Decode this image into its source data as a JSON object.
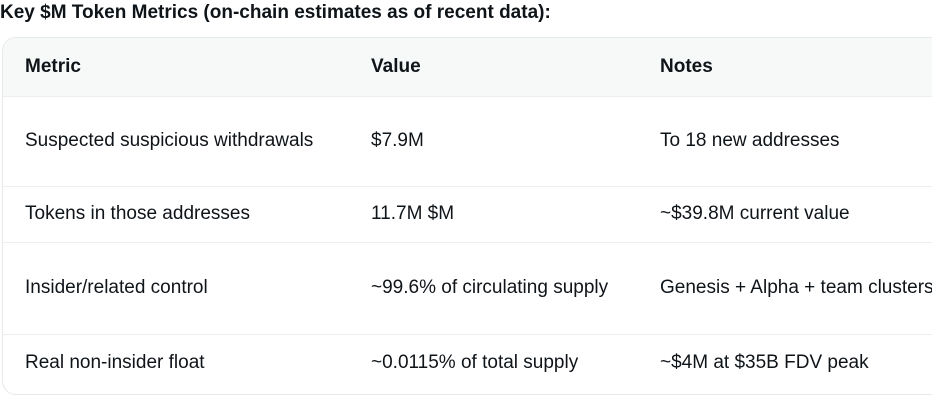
{
  "heading": "Key $M Token Metrics (on-chain estimates as of recent data):",
  "table": {
    "headers": [
      "Metric",
      "Value",
      "Notes"
    ],
    "rows": [
      [
        "Suspected suspicious withdrawals",
        "$7.9M",
        "To 18 new addresses"
      ],
      [
        "Tokens in those addresses",
        "11.7M $M",
        "~$39.8M current value"
      ],
      [
        "Insider/related control",
        "~99.6% of circulating supply",
        "Genesis + Alpha + team clusters"
      ],
      [
        "Real non-insider float",
        "~0.0115% of total supply",
        "~$4M at $35B FDV peak"
      ]
    ]
  }
}
